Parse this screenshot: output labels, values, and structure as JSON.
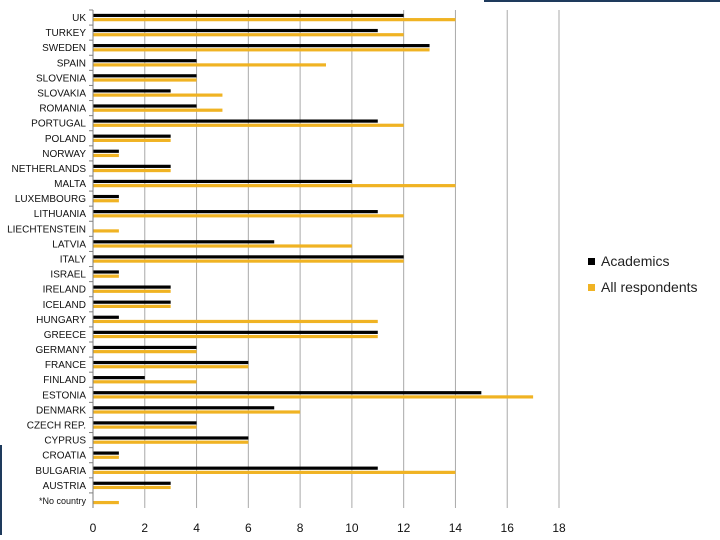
{
  "chart_data": {
    "type": "bar",
    "orientation": "horizontal",
    "title": "",
    "xlabel": "",
    "ylabel": "",
    "xlim": [
      0,
      18
    ],
    "xticks": [
      0,
      2,
      4,
      6,
      8,
      10,
      12,
      14,
      16,
      18
    ],
    "grid": true,
    "legend_position": "right",
    "categories": [
      "UK",
      "TURKEY",
      "SWEDEN",
      "SPAIN",
      "SLOVENIA",
      "SLOVAKIA",
      "ROMANIA",
      "PORTUGAL",
      "POLAND",
      "NORWAY",
      "NETHERLANDS",
      "MALTA",
      "LUXEMBOURG",
      "LITHUANIA",
      "LIECHTENSTEIN",
      "LATVIA",
      "ITALY",
      "ISRAEL",
      "IRELAND",
      "ICELAND",
      "HUNGARY",
      "GREECE",
      "GERMANY",
      "FRANCE",
      "FINLAND",
      "ESTONIA",
      "DENMARK",
      "CZECH REP.",
      "CYPRUS",
      "CROATIA",
      "BULGARIA",
      "AUSTRIA",
      "*No country"
    ],
    "series": [
      {
        "name": "Academics",
        "color": "#000000",
        "values": [
          12,
          11,
          13,
          4,
          4,
          3,
          4,
          11,
          3,
          1,
          3,
          10,
          1,
          11,
          0,
          7,
          12,
          1,
          3,
          3,
          1,
          11,
          4,
          6,
          2,
          15,
          7,
          4,
          6,
          1,
          11,
          3,
          0
        ]
      },
      {
        "name": "All respondents",
        "color": "#f0b323",
        "values": [
          14,
          12,
          13,
          9,
          4,
          5,
          5,
          12,
          3,
          1,
          3,
          14,
          1,
          12,
          1,
          10,
          12,
          1,
          3,
          3,
          11,
          11,
          4,
          6,
          4,
          17,
          8,
          4,
          6,
          1,
          14,
          3,
          1
        ]
      }
    ]
  }
}
